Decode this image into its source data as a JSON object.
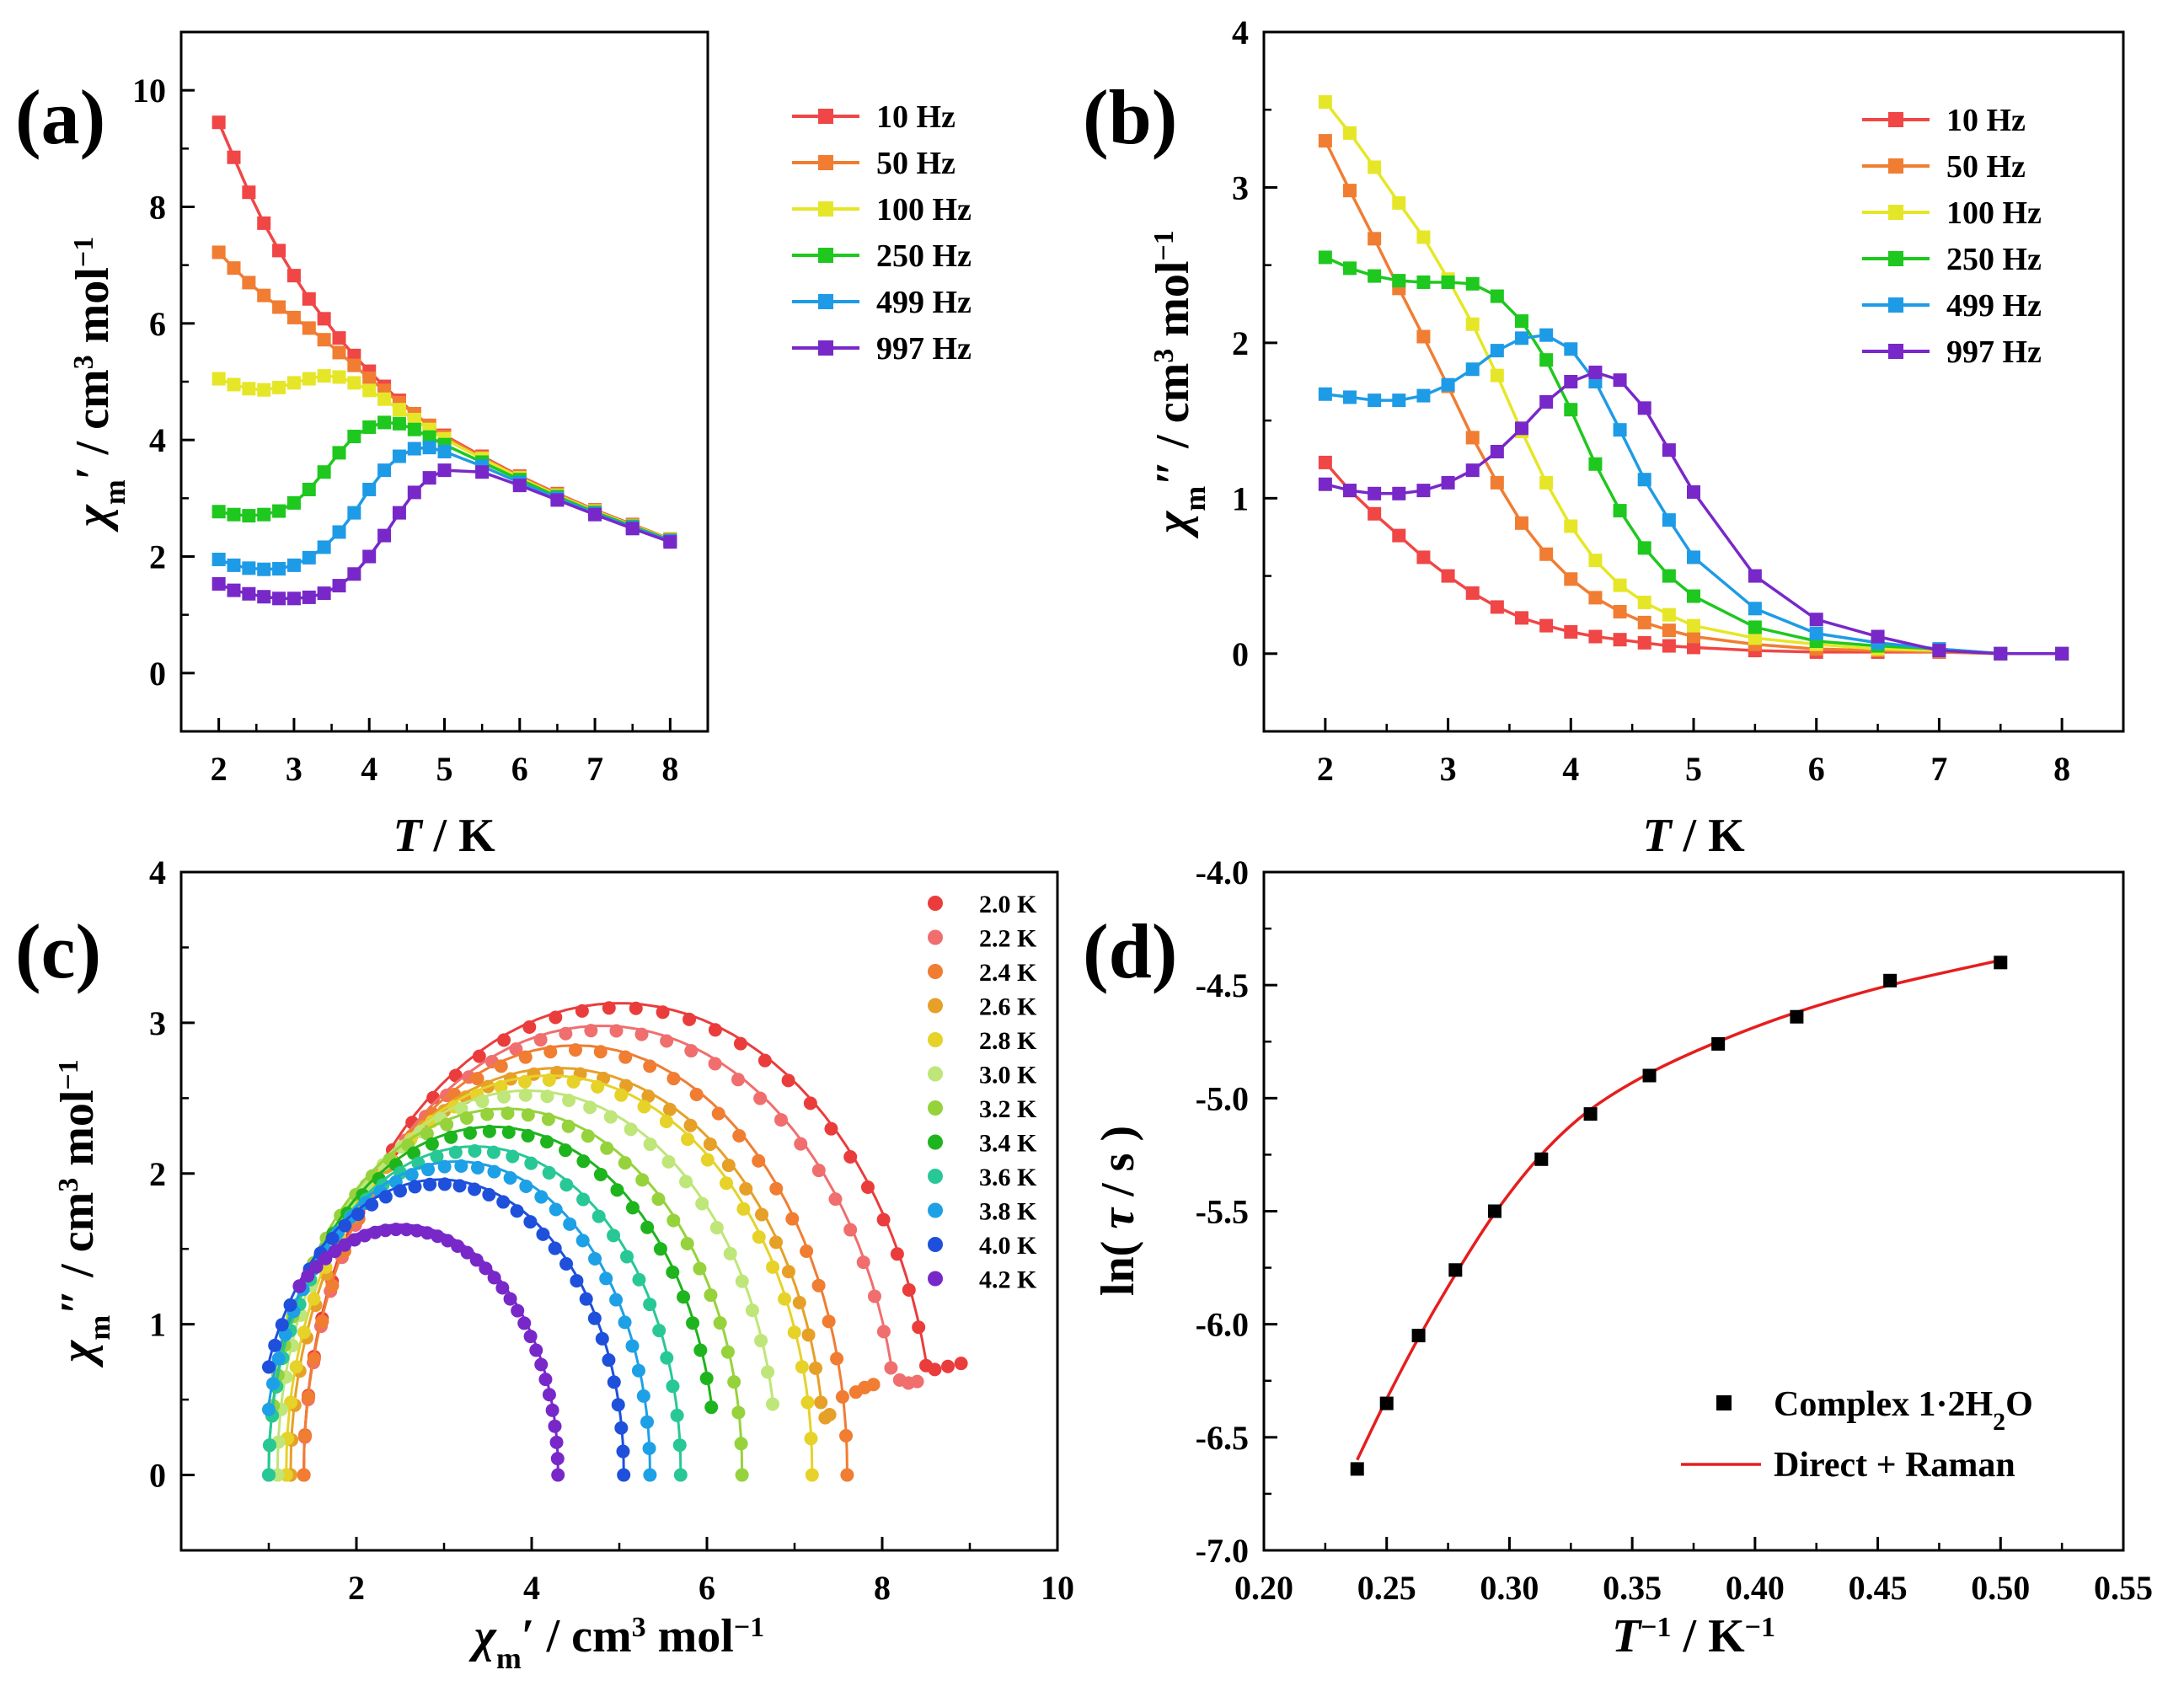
{
  "chart_data": [
    {
      "type": "line",
      "panel_label": "(a)",
      "xlabel": "T / K",
      "xlabel_parts": {
        "sym": "T",
        "rest": " / K"
      },
      "ylabel": "χm′ / cm3 mol−1",
      "ylabel_parts": {
        "sym": "χ",
        "sub": "m",
        "prime": "′",
        "unit": " / cm",
        "sup1": "3",
        "mol": " mol",
        "sup2": "−1"
      },
      "xlim": [
        1.5,
        8.5
      ],
      "ylim": [
        -1,
        11
      ],
      "xticks": [
        "2",
        "3",
        "4",
        "5",
        "6",
        "7",
        "8"
      ],
      "yticks": [
        "0",
        "2",
        "4",
        "6",
        "8",
        "10"
      ],
      "legend_position": "top-right",
      "x": [
        2.0,
        2.2,
        2.4,
        2.6,
        2.8,
        3.0,
        3.2,
        3.4,
        3.6,
        3.8,
        4.0,
        4.2,
        4.4,
        4.6,
        4.8,
        5.0,
        5.5,
        6.0,
        6.5,
        7.0,
        7.5,
        8.0
      ],
      "series": [
        {
          "name": "10 Hz",
          "color": "#f04646",
          "values": [
            9.45,
            8.85,
            8.25,
            7.72,
            7.25,
            6.82,
            6.42,
            6.08,
            5.75,
            5.45,
            5.18,
            4.92,
            4.68,
            4.45,
            4.25,
            4.08,
            3.72,
            3.38,
            3.08,
            2.8,
            2.55,
            2.3
          ]
        },
        {
          "name": "50 Hz",
          "color": "#f07d32",
          "values": [
            7.22,
            6.95,
            6.7,
            6.48,
            6.28,
            6.1,
            5.92,
            5.72,
            5.5,
            5.28,
            5.06,
            4.85,
            4.64,
            4.45,
            4.25,
            4.06,
            3.7,
            3.37,
            3.07,
            2.79,
            2.54,
            2.3
          ]
        },
        {
          "name": "100 Hz",
          "color": "#e6e628",
          "values": [
            5.05,
            4.95,
            4.88,
            4.86,
            4.9,
            4.98,
            5.05,
            5.1,
            5.08,
            4.98,
            4.85,
            4.7,
            4.52,
            4.35,
            4.18,
            4.02,
            3.68,
            3.35,
            3.05,
            2.78,
            2.53,
            2.29
          ]
        },
        {
          "name": "250 Hz",
          "color": "#1ec81e",
          "values": [
            2.77,
            2.72,
            2.7,
            2.72,
            2.78,
            2.92,
            3.15,
            3.45,
            3.78,
            4.06,
            4.22,
            4.3,
            4.28,
            4.18,
            4.05,
            3.92,
            3.62,
            3.32,
            3.03,
            2.76,
            2.52,
            2.28
          ]
        },
        {
          "name": "499 Hz",
          "color": "#1e9be6",
          "values": [
            1.95,
            1.85,
            1.8,
            1.78,
            1.79,
            1.85,
            1.98,
            2.16,
            2.42,
            2.75,
            3.15,
            3.48,
            3.72,
            3.85,
            3.87,
            3.8,
            3.55,
            3.27,
            3.0,
            2.74,
            2.5,
            2.27
          ]
        },
        {
          "name": "997 Hz",
          "color": "#7828c8",
          "values": [
            1.53,
            1.42,
            1.36,
            1.31,
            1.28,
            1.28,
            1.3,
            1.37,
            1.5,
            1.7,
            2.0,
            2.36,
            2.75,
            3.1,
            3.35,
            3.48,
            3.45,
            3.22,
            2.97,
            2.72,
            2.48,
            2.25
          ]
        }
      ]
    },
    {
      "type": "line",
      "panel_label": "(b)",
      "xlabel": "T / K",
      "xlabel_parts": {
        "sym": "T",
        "rest": " / K"
      },
      "ylabel": "χm″ / cm3 mol−1",
      "ylabel_parts": {
        "sym": "χ",
        "sub": "m",
        "prime": "″",
        "unit": " / cm",
        "sup1": "3",
        "mol": " mol",
        "sup2": "−1"
      },
      "xlim": [
        1.5,
        8.5
      ],
      "ylim": [
        -0.5,
        4
      ],
      "xticks": [
        "2",
        "3",
        "4",
        "5",
        "6",
        "7",
        "8"
      ],
      "yticks": [
        "0",
        "1",
        "2",
        "3",
        "4"
      ],
      "legend_position": "top-right",
      "x": [
        2.0,
        2.2,
        2.4,
        2.6,
        2.8,
        3.0,
        3.2,
        3.4,
        3.6,
        3.8,
        4.0,
        4.2,
        4.4,
        4.6,
        4.8,
        5.0,
        5.5,
        6.0,
        6.5,
        7.0,
        7.5,
        8.0
      ],
      "series": [
        {
          "name": "10 Hz",
          "color": "#f04646",
          "values": [
            1.23,
            1.05,
            0.9,
            0.76,
            0.62,
            0.5,
            0.39,
            0.3,
            0.23,
            0.18,
            0.14,
            0.11,
            0.09,
            0.07,
            0.05,
            0.04,
            0.02,
            0.01,
            0.01,
            0.01,
            0.0,
            0.0
          ]
        },
        {
          "name": "50 Hz",
          "color": "#f07d32",
          "values": [
            3.3,
            2.98,
            2.67,
            2.35,
            2.04,
            1.72,
            1.39,
            1.1,
            0.84,
            0.64,
            0.48,
            0.36,
            0.27,
            0.2,
            0.15,
            0.11,
            0.06,
            0.03,
            0.02,
            0.01,
            0.0,
            0.0
          ]
        },
        {
          "name": "100 Hz",
          "color": "#e6e628",
          "values": [
            3.55,
            3.35,
            3.13,
            2.9,
            2.68,
            2.41,
            2.12,
            1.79,
            1.43,
            1.1,
            0.82,
            0.6,
            0.44,
            0.33,
            0.25,
            0.18,
            0.1,
            0.06,
            0.03,
            0.02,
            0.0,
            0.0
          ]
        },
        {
          "name": "250 Hz",
          "color": "#1ec81e",
          "values": [
            2.55,
            2.48,
            2.43,
            2.4,
            2.39,
            2.39,
            2.38,
            2.3,
            2.14,
            1.89,
            1.57,
            1.22,
            0.92,
            0.68,
            0.5,
            0.37,
            0.17,
            0.08,
            0.05,
            0.03,
            0.0,
            0.0
          ]
        },
        {
          "name": "499 Hz",
          "color": "#1e9be6",
          "values": [
            1.67,
            1.65,
            1.63,
            1.63,
            1.66,
            1.73,
            1.83,
            1.95,
            2.03,
            2.05,
            1.96,
            1.75,
            1.44,
            1.12,
            0.86,
            0.62,
            0.29,
            0.13,
            0.07,
            0.03,
            0.0,
            0.0
          ]
        },
        {
          "name": "997 Hz",
          "color": "#7828c8",
          "values": [
            1.09,
            1.05,
            1.03,
            1.03,
            1.05,
            1.1,
            1.18,
            1.3,
            1.45,
            1.62,
            1.75,
            1.81,
            1.76,
            1.58,
            1.31,
            1.04,
            0.5,
            0.22,
            0.11,
            0.02,
            0.0,
            0.0
          ]
        }
      ]
    },
    {
      "type": "scatter",
      "panel_label": "(c)",
      "xlabel": "χm′ / cm3 mol−1",
      "xlabel_parts": {
        "sym": "χ",
        "sub": "m",
        "prime": "′",
        "unit": " / cm",
        "sup1": "3",
        "mol": " mol",
        "sup2": "−1"
      },
      "ylabel": "χm″ / cm3 mol−1",
      "ylabel_parts": {
        "sym": "χ",
        "sub": "m",
        "prime": "″",
        "unit": " / cm",
        "sup1": "3",
        "mol": " mol",
        "sup2": "−1"
      },
      "xlim": [
        0,
        10
      ],
      "ylim": [
        -0.5,
        4
      ],
      "xticks": [
        "2",
        "4",
        "6",
        "8",
        "10"
      ],
      "yticks": [
        "0",
        "1",
        "2",
        "3",
        "4"
      ],
      "legend_position": "top-right",
      "series": [
        {
          "name": "2.0 K",
          "color": "#eb3c3c",
          "cx": 5.0,
          "r": 3.6,
          "h": 3.1,
          "xs": 1.2,
          "xe": 8.5,
          "tail": [
            [
              8.6,
              0.7
            ],
            [
              8.75,
              0.72
            ],
            [
              8.9,
              0.74
            ]
          ]
        },
        {
          "name": "2.2 K",
          "color": "#f06e6e",
          "cx": 4.8,
          "r": 3.4,
          "h": 2.95,
          "xs": 1.2,
          "xe": 8.1,
          "tail": [
            [
              8.2,
              0.63
            ],
            [
              8.3,
              0.61
            ],
            [
              8.4,
              0.62
            ]
          ]
        },
        {
          "name": "2.4 K",
          "color": "#f07d32",
          "cx": 4.5,
          "r": 3.1,
          "h": 2.82,
          "xs": 1.15,
          "xe": 7.6,
          "tail": [
            [
              7.7,
              0.55
            ],
            [
              7.8,
              0.58
            ],
            [
              7.9,
              0.6
            ]
          ]
        },
        {
          "name": "2.6 K",
          "color": "#e6a028",
          "cx": 4.3,
          "r": 3.05,
          "h": 2.67,
          "xs": 1.1,
          "xe": 7.3,
          "tail": [
            [
              7.35,
              0.38
            ],
            [
              7.4,
              0.4
            ]
          ]
        },
        {
          "name": "2.8 K",
          "color": "#e6d228",
          "cx": 4.2,
          "r": 3.0,
          "h": 2.62,
          "xs": 1.1,
          "xe": 7.2,
          "tail": []
        },
        {
          "name": "3.0 K",
          "color": "#bee678",
          "cx": 3.95,
          "r": 2.85,
          "h": 2.52,
          "xs": 1.05,
          "xe": 6.75,
          "tail": []
        },
        {
          "name": "3.2 K",
          "color": "#96d23c",
          "cx": 3.7,
          "r": 2.7,
          "h": 2.4,
          "xs": 1.05,
          "xe": 6.4,
          "tail": []
        },
        {
          "name": "3.4 K",
          "color": "#1eb41e",
          "cx": 3.55,
          "r": 2.55,
          "h": 2.28,
          "xs": 1.0,
          "xe": 6.05,
          "tail": []
        },
        {
          "name": "3.6 K",
          "color": "#28c896",
          "cx": 3.35,
          "r": 2.35,
          "h": 2.15,
          "xs": 1.0,
          "xe": 5.7,
          "tail": []
        },
        {
          "name": "3.8 K",
          "color": "#1ea0e6",
          "cx": 3.15,
          "r": 2.2,
          "h": 2.05,
          "xs": 1.0,
          "xe": 5.35,
          "tail": []
        },
        {
          "name": "4.0 K",
          "color": "#1e50dc",
          "cx": 2.95,
          "r": 2.1,
          "h": 1.93,
          "xs": 1.0,
          "xe": 5.05,
          "tail": []
        },
        {
          "name": "4.2 K",
          "color": "#7828c8",
          "cx": 2.5,
          "r": 1.8,
          "h": 1.63,
          "xs": 1.35,
          "xe": 4.3,
          "tail": []
        }
      ]
    },
    {
      "type": "scatter",
      "panel_label": "(d)",
      "xlabel": "T−1 / K−1",
      "xlabel_parts": {
        "sym": "T",
        "sup1": "−1",
        "unit": " / K",
        "sup2": "−1"
      },
      "ylabel": "ln( τ / s )",
      "ylabel_parts": {
        "pre": "ln( ",
        "sym": "τ",
        "post": " / s )"
      },
      "xlim": [
        0.2,
        0.55
      ],
      "ylim": [
        -7.0,
        -4.0
      ],
      "xticks": [
        "0.20",
        "0.25",
        "0.30",
        "0.35",
        "0.40",
        "0.45",
        "0.50",
        "0.55"
      ],
      "yticks": [
        "-7.0",
        "-6.5",
        "-6.0",
        "-5.5",
        "-5.0",
        "-4.5",
        "-4.0"
      ],
      "legend_position": "bottom-right",
      "points": {
        "name": "Complex 1·2H2O",
        "name_parts": {
          "a": "Complex 1·2H",
          "sub": "2",
          "b": "O"
        },
        "x": [
          0.238,
          0.25,
          0.263,
          0.278,
          0.294,
          0.313,
          0.333,
          0.357,
          0.385,
          0.417,
          0.455,
          0.5
        ],
        "y": [
          -6.64,
          -6.35,
          -6.05,
          -5.76,
          -5.5,
          -5.27,
          -5.07,
          -4.9,
          -4.76,
          -4.64,
          -4.48,
          -4.4
        ]
      },
      "fit": {
        "name": "Direct + Raman",
        "color": "#e61e1e",
        "x": [
          0.238,
          0.25,
          0.263,
          0.278,
          0.294,
          0.313,
          0.333,
          0.357,
          0.385,
          0.417,
          0.455,
          0.5
        ],
        "y": [
          -6.6,
          -6.33,
          -6.06,
          -5.78,
          -5.51,
          -5.25,
          -5.05,
          -4.89,
          -4.75,
          -4.62,
          -4.5,
          -4.39
        ]
      }
    }
  ]
}
